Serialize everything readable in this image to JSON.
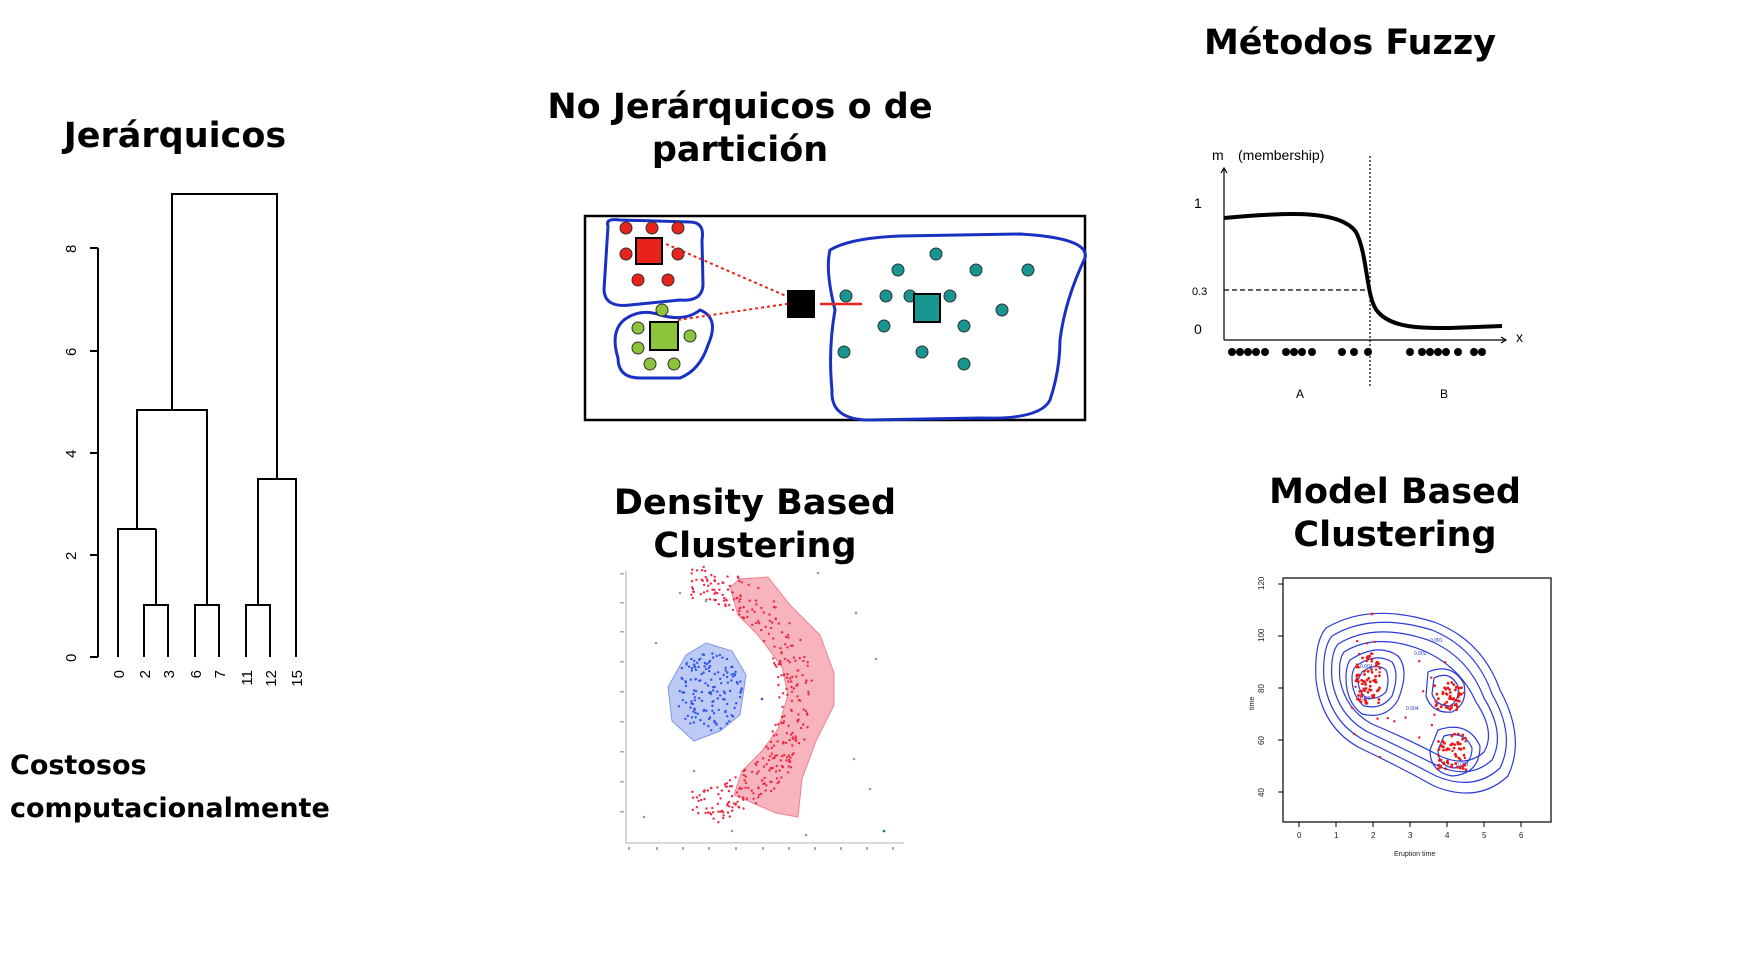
{
  "hierarchical": {
    "title": "Jerárquicos",
    "caption": "Costosos computacionalmente",
    "y_ticks": [
      "0",
      "2",
      "4",
      "6",
      "8"
    ],
    "leaves": [
      "0",
      "2",
      "3",
      "6",
      "7",
      "11",
      "12",
      "15"
    ]
  },
  "partition": {
    "title_line1": "No Jerárquicos o de",
    "title_line2": "partición",
    "colors": {
      "red": "#e8231c",
      "green": "#8cc43c",
      "teal": "#17968f",
      "outline": "#1a2fc4"
    }
  },
  "fuzzy": {
    "title": "Métodos Fuzzy",
    "axis_m": "m",
    "axis_m_note": "(membership)",
    "tick_1": "1",
    "tick_03": "0.3",
    "tick_0": "0",
    "axis_x": "x",
    "label_a": "A",
    "label_b": "B"
  },
  "density": {
    "title_line1": "Density Based",
    "title_line2": "Clustering",
    "colors": {
      "blue": "#2f56e6",
      "blue_fill": "#a7b8f2",
      "red": "#ec2a44",
      "red_fill": "#f5a1ad"
    }
  },
  "model": {
    "title_line1": "Model Based",
    "title_line2": "Clustering",
    "y_ticks": [
      "40",
      "60",
      "80",
      "100",
      "120"
    ],
    "x_ticks": [
      "0",
      "1",
      "2",
      "3",
      "4",
      "5",
      "6"
    ],
    "xlabel": "Eruption time",
    "ylabel": "time",
    "contour_labels": [
      "0.001",
      "0.002",
      "0.004",
      "0.003",
      "0.004",
      "0.001"
    ],
    "colors": {
      "contour": "#2a3bd6",
      "points": "#e81b1b"
    }
  }
}
